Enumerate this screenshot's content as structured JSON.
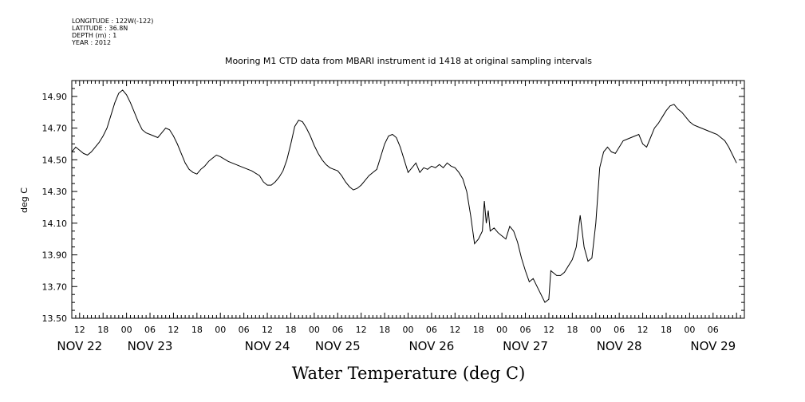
{
  "meta": {
    "longitude": "LONGITUDE : 122W(-122)",
    "latitude": "LATITUDE : 36.8N",
    "depth": "DEPTH (m) : 1",
    "year": "YEAR : 2012"
  },
  "chart_data": {
    "type": "line",
    "title": "Mooring M1 CTD data from MBARI instrument id 1418 at original sampling intervals",
    "xlabel": "Water Temperature (deg C)",
    "ylabel": "deg C",
    "ylim": [
      13.5,
      15.0
    ],
    "xlim": [
      "2012-11-22T10:00",
      "2012-11-29T14:00"
    ],
    "yticks": [
      "13.50",
      "13.70",
      "13.90",
      "14.10",
      "14.30",
      "14.50",
      "14.70",
      "14.90"
    ],
    "x_hour_ticks": [
      {
        "t": "2012-11-22T12:00",
        "label": "12"
      },
      {
        "t": "2012-11-22T18:00",
        "label": "18"
      },
      {
        "t": "2012-11-23T00:00",
        "label": "00"
      },
      {
        "t": "2012-11-23T06:00",
        "label": "06"
      },
      {
        "t": "2012-11-23T12:00",
        "label": "12"
      },
      {
        "t": "2012-11-23T18:00",
        "label": "18"
      },
      {
        "t": "2012-11-24T00:00",
        "label": "00"
      },
      {
        "t": "2012-11-24T06:00",
        "label": "06"
      },
      {
        "t": "2012-11-24T12:00",
        "label": "12"
      },
      {
        "t": "2012-11-24T18:00",
        "label": "18"
      },
      {
        "t": "2012-11-25T00:00",
        "label": "00"
      },
      {
        "t": "2012-11-25T06:00",
        "label": "06"
      },
      {
        "t": "2012-11-25T12:00",
        "label": "12"
      },
      {
        "t": "2012-11-25T18:00",
        "label": "18"
      },
      {
        "t": "2012-11-26T00:00",
        "label": "00"
      },
      {
        "t": "2012-11-26T06:00",
        "label": "06"
      },
      {
        "t": "2012-11-26T12:00",
        "label": "12"
      },
      {
        "t": "2012-11-26T18:00",
        "label": "18"
      },
      {
        "t": "2012-11-27T00:00",
        "label": "00"
      },
      {
        "t": "2012-11-27T06:00",
        "label": "06"
      },
      {
        "t": "2012-11-27T12:00",
        "label": "12"
      },
      {
        "t": "2012-11-27T18:00",
        "label": "18"
      },
      {
        "t": "2012-11-28T00:00",
        "label": "00"
      },
      {
        "t": "2012-11-28T06:00",
        "label": "06"
      },
      {
        "t": "2012-11-28T12:00",
        "label": "12"
      },
      {
        "t": "2012-11-28T18:00",
        "label": "18"
      },
      {
        "t": "2012-11-29T00:00",
        "label": "00"
      },
      {
        "t": "2012-11-29T06:00",
        "label": "06"
      }
    ],
    "x_day_labels": [
      {
        "t": "2012-11-22T12:00",
        "label": "NOV 22"
      },
      {
        "t": "2012-11-23T06:00",
        "label": "NOV 23"
      },
      {
        "t": "2012-11-24T12:00",
        "label": "NOV 24"
      },
      {
        "t": "2012-11-25T06:00",
        "label": "NOV 25"
      },
      {
        "t": "2012-11-26T06:00",
        "label": "NOV 26"
      },
      {
        "t": "2012-11-27T06:00",
        "label": "NOV 27"
      },
      {
        "t": "2012-11-28T06:00",
        "label": "NOV 28"
      },
      {
        "t": "2012-11-29T06:00",
        "label": "NOV 29"
      }
    ],
    "series": [
      {
        "values": [
          [
            "2012-11-22T10:00",
            14.55
          ],
          [
            "2012-11-22T11:00",
            14.58
          ],
          [
            "2012-11-22T12:00",
            14.56
          ],
          [
            "2012-11-22T13:00",
            14.54
          ],
          [
            "2012-11-22T14:00",
            14.53
          ],
          [
            "2012-11-22T15:00",
            14.55
          ],
          [
            "2012-11-22T16:00",
            14.58
          ],
          [
            "2012-11-22T17:00",
            14.61
          ],
          [
            "2012-11-22T18:00",
            14.65
          ],
          [
            "2012-11-22T19:00",
            14.7
          ],
          [
            "2012-11-22T20:00",
            14.78
          ],
          [
            "2012-11-22T21:00",
            14.86
          ],
          [
            "2012-11-22T22:00",
            14.92
          ],
          [
            "2012-11-22T23:00",
            14.94
          ],
          [
            "2012-11-23T00:00",
            14.91
          ],
          [
            "2012-11-23T01:00",
            14.86
          ],
          [
            "2012-11-23T02:00",
            14.8
          ],
          [
            "2012-11-23T03:00",
            14.74
          ],
          [
            "2012-11-23T04:00",
            14.69
          ],
          [
            "2012-11-23T05:00",
            14.67
          ],
          [
            "2012-11-23T06:00",
            14.66
          ],
          [
            "2012-11-23T07:00",
            14.65
          ],
          [
            "2012-11-23T08:00",
            14.64
          ],
          [
            "2012-11-23T09:00",
            14.67
          ],
          [
            "2012-11-23T10:00",
            14.7
          ],
          [
            "2012-11-23T11:00",
            14.69
          ],
          [
            "2012-11-23T12:00",
            14.65
          ],
          [
            "2012-11-23T13:00",
            14.6
          ],
          [
            "2012-11-23T14:00",
            14.54
          ],
          [
            "2012-11-23T15:00",
            14.48
          ],
          [
            "2012-11-23T16:00",
            14.44
          ],
          [
            "2012-11-23T17:00",
            14.42
          ],
          [
            "2012-11-23T18:00",
            14.41
          ],
          [
            "2012-11-23T19:00",
            14.44
          ],
          [
            "2012-11-23T20:00",
            14.46
          ],
          [
            "2012-11-23T21:00",
            14.49
          ],
          [
            "2012-11-23T22:00",
            14.51
          ],
          [
            "2012-11-23T23:00",
            14.53
          ],
          [
            "2012-11-24T00:00",
            14.52
          ],
          [
            "2012-11-24T02:00",
            14.49
          ],
          [
            "2012-11-24T04:00",
            14.47
          ],
          [
            "2012-11-24T06:00",
            14.45
          ],
          [
            "2012-11-24T08:00",
            14.43
          ],
          [
            "2012-11-24T10:00",
            14.4
          ],
          [
            "2012-11-24T11:00",
            14.36
          ],
          [
            "2012-11-24T12:00",
            14.34
          ],
          [
            "2012-11-24T13:00",
            14.34
          ],
          [
            "2012-11-24T14:00",
            14.36
          ],
          [
            "2012-11-24T15:00",
            14.39
          ],
          [
            "2012-11-24T16:00",
            14.43
          ],
          [
            "2012-11-24T17:00",
            14.5
          ],
          [
            "2012-11-24T18:00",
            14.6
          ],
          [
            "2012-11-24T19:00",
            14.71
          ],
          [
            "2012-11-24T20:00",
            14.75
          ],
          [
            "2012-11-24T21:00",
            14.74
          ],
          [
            "2012-11-24T22:00",
            14.7
          ],
          [
            "2012-11-24T23:00",
            14.65
          ],
          [
            "2012-11-25T00:00",
            14.59
          ],
          [
            "2012-11-25T01:00",
            14.54
          ],
          [
            "2012-11-25T02:00",
            14.5
          ],
          [
            "2012-11-25T03:00",
            14.47
          ],
          [
            "2012-11-25T04:00",
            14.45
          ],
          [
            "2012-11-25T05:00",
            14.44
          ],
          [
            "2012-11-25T06:00",
            14.43
          ],
          [
            "2012-11-25T07:00",
            14.4
          ],
          [
            "2012-11-25T08:00",
            14.36
          ],
          [
            "2012-11-25T09:00",
            14.33
          ],
          [
            "2012-11-25T10:00",
            14.31
          ],
          [
            "2012-11-25T11:00",
            14.32
          ],
          [
            "2012-11-25T12:00",
            14.34
          ],
          [
            "2012-11-25T13:00",
            14.37
          ],
          [
            "2012-11-25T14:00",
            14.4
          ],
          [
            "2012-11-25T15:00",
            14.42
          ],
          [
            "2012-11-25T16:00",
            14.44
          ],
          [
            "2012-11-25T17:00",
            14.52
          ],
          [
            "2012-11-25T18:00",
            14.6
          ],
          [
            "2012-11-25T19:00",
            14.65
          ],
          [
            "2012-11-25T20:00",
            14.66
          ],
          [
            "2012-11-25T21:00",
            14.64
          ],
          [
            "2012-11-25T22:00",
            14.58
          ],
          [
            "2012-11-25T23:00",
            14.5
          ],
          [
            "2012-11-26T00:00",
            14.42
          ],
          [
            "2012-11-26T01:00",
            14.45
          ],
          [
            "2012-11-26T02:00",
            14.48
          ],
          [
            "2012-11-26T03:00",
            14.42
          ],
          [
            "2012-11-26T04:00",
            14.45
          ],
          [
            "2012-11-26T05:00",
            14.44
          ],
          [
            "2012-11-26T06:00",
            14.46
          ],
          [
            "2012-11-26T07:00",
            14.45
          ],
          [
            "2012-11-26T08:00",
            14.47
          ],
          [
            "2012-11-26T09:00",
            14.45
          ],
          [
            "2012-11-26T10:00",
            14.48
          ],
          [
            "2012-11-26T11:00",
            14.46
          ],
          [
            "2012-11-26T12:00",
            14.45
          ],
          [
            "2012-11-26T13:00",
            14.42
          ],
          [
            "2012-11-26T14:00",
            14.38
          ],
          [
            "2012-11-26T15:00",
            14.3
          ],
          [
            "2012-11-26T16:00",
            14.15
          ],
          [
            "2012-11-26T17:00",
            13.97
          ],
          [
            "2012-11-26T18:00",
            14.0
          ],
          [
            "2012-11-26T19:00",
            14.05
          ],
          [
            "2012-11-26T19:30",
            14.24
          ],
          [
            "2012-11-26T20:00",
            14.1
          ],
          [
            "2012-11-26T20:30",
            14.18
          ],
          [
            "2012-11-26T21:00",
            14.05
          ],
          [
            "2012-11-26T22:00",
            14.07
          ],
          [
            "2012-11-26T23:00",
            14.04
          ],
          [
            "2012-11-27T00:00",
            14.02
          ],
          [
            "2012-11-27T01:00",
            14.0
          ],
          [
            "2012-11-27T02:00",
            14.08
          ],
          [
            "2012-11-27T03:00",
            14.05
          ],
          [
            "2012-11-27T04:00",
            13.98
          ],
          [
            "2012-11-27T05:00",
            13.88
          ],
          [
            "2012-11-27T06:00",
            13.8
          ],
          [
            "2012-11-27T07:00",
            13.73
          ],
          [
            "2012-11-27T08:00",
            13.75
          ],
          [
            "2012-11-27T09:00",
            13.7
          ],
          [
            "2012-11-27T10:00",
            13.65
          ],
          [
            "2012-11-27T11:00",
            13.6
          ],
          [
            "2012-11-27T12:00",
            13.62
          ],
          [
            "2012-11-27T12:30",
            13.8
          ],
          [
            "2012-11-27T13:00",
            13.79
          ],
          [
            "2012-11-27T14:00",
            13.77
          ],
          [
            "2012-11-27T15:00",
            13.77
          ],
          [
            "2012-11-27T16:00",
            13.79
          ],
          [
            "2012-11-27T17:00",
            13.83
          ],
          [
            "2012-11-27T18:00",
            13.87
          ],
          [
            "2012-11-27T19:00",
            13.95
          ],
          [
            "2012-11-27T20:00",
            14.15
          ],
          [
            "2012-11-27T21:00",
            13.95
          ],
          [
            "2012-11-27T22:00",
            13.86
          ],
          [
            "2012-11-27T23:00",
            13.88
          ],
          [
            "2012-11-28T00:00",
            14.1
          ],
          [
            "2012-11-28T01:00",
            14.45
          ],
          [
            "2012-11-28T02:00",
            14.55
          ],
          [
            "2012-11-28T03:00",
            14.58
          ],
          [
            "2012-11-28T04:00",
            14.55
          ],
          [
            "2012-11-28T05:00",
            14.54
          ],
          [
            "2012-11-28T06:00",
            14.58
          ],
          [
            "2012-11-28T07:00",
            14.62
          ],
          [
            "2012-11-28T08:00",
            14.63
          ],
          [
            "2012-11-28T09:00",
            14.64
          ],
          [
            "2012-11-28T10:00",
            14.65
          ],
          [
            "2012-11-28T11:00",
            14.66
          ],
          [
            "2012-11-28T12:00",
            14.6
          ],
          [
            "2012-11-28T13:00",
            14.58
          ],
          [
            "2012-11-28T14:00",
            14.64
          ],
          [
            "2012-11-28T15:00",
            14.7
          ],
          [
            "2012-11-28T16:00",
            14.73
          ],
          [
            "2012-11-28T17:00",
            14.77
          ],
          [
            "2012-11-28T18:00",
            14.81
          ],
          [
            "2012-11-28T19:00",
            14.84
          ],
          [
            "2012-11-28T20:00",
            14.85
          ],
          [
            "2012-11-28T21:00",
            14.82
          ],
          [
            "2012-11-28T22:00",
            14.8
          ],
          [
            "2012-11-28T23:00",
            14.77
          ],
          [
            "2012-11-29T00:00",
            14.74
          ],
          [
            "2012-11-29T01:00",
            14.72
          ],
          [
            "2012-11-29T02:00",
            14.71
          ],
          [
            "2012-11-29T03:00",
            14.7
          ],
          [
            "2012-11-29T04:00",
            14.69
          ],
          [
            "2012-11-29T05:00",
            14.68
          ],
          [
            "2012-11-29T06:00",
            14.67
          ],
          [
            "2012-11-29T07:00",
            14.66
          ],
          [
            "2012-11-29T08:00",
            14.64
          ],
          [
            "2012-11-29T09:00",
            14.62
          ],
          [
            "2012-11-29T10:00",
            14.58
          ],
          [
            "2012-11-29T11:00",
            14.53
          ],
          [
            "2012-11-29T12:00",
            14.48
          ]
        ]
      }
    ]
  }
}
